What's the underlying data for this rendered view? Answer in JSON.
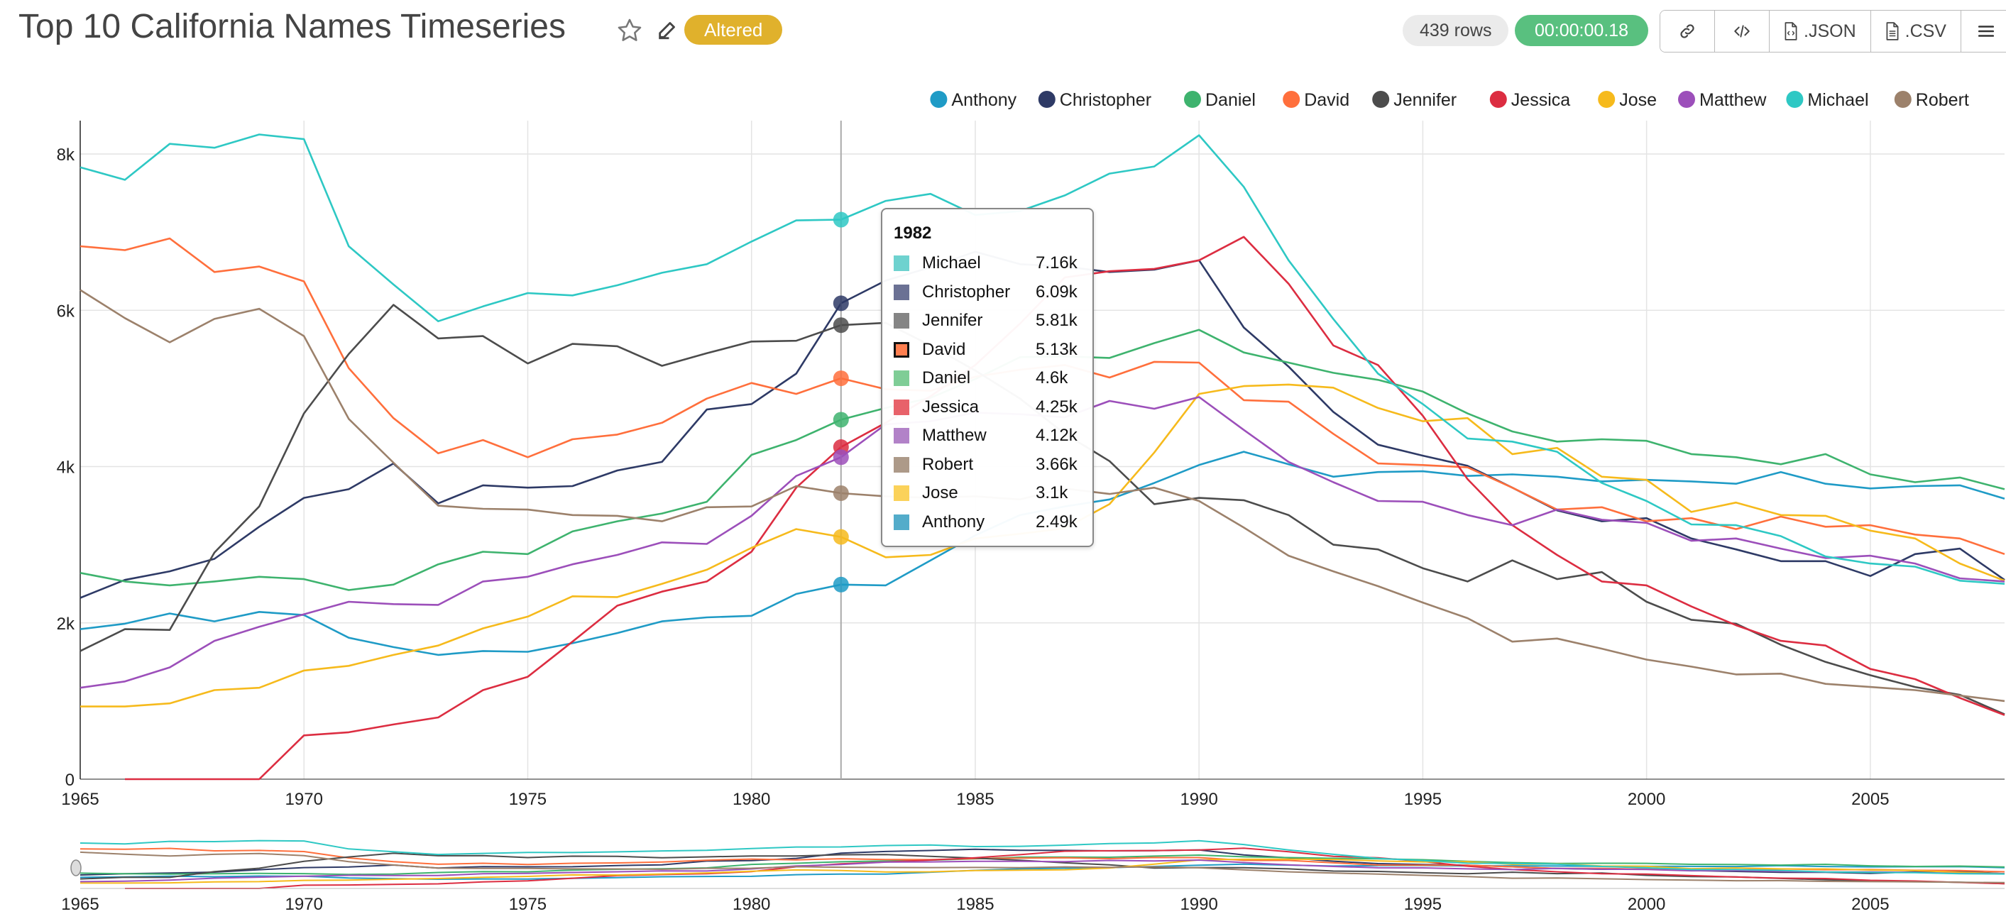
{
  "header": {
    "title": "Top 10 California Names Timeseries",
    "altered_badge": "Altered",
    "rows_badge": "439 rows",
    "time_badge": "00:00:00.18",
    "json_label": ".JSON",
    "csv_label": ".CSV",
    "icons": [
      "star-icon",
      "edit-icon",
      "link-icon",
      "code-icon",
      "json-file-icon",
      "csv-file-icon",
      "menu-icon"
    ]
  },
  "tooltip": {
    "title": "1982",
    "rows": [
      {
        "name": "Michael",
        "value": "7.16k",
        "color": "#6ed2cf"
      },
      {
        "name": "Christopher",
        "value": "6.09k",
        "color": "#6b7194"
      },
      {
        "name": "Jennifer",
        "value": "5.81k",
        "color": "#858585"
      },
      {
        "name": "David",
        "value": "5.13k",
        "color": "#ff7f50",
        "highlight": true
      },
      {
        "name": "Daniel",
        "value": "4.6k",
        "color": "#7fcd96"
      },
      {
        "name": "Jessica",
        "value": "4.25k",
        "color": "#e8626a"
      },
      {
        "name": "Matthew",
        "value": "4.12k",
        "color": "#b282c8"
      },
      {
        "name": "Robert",
        "value": "3.66k",
        "color": "#ad9a89"
      },
      {
        "name": "Jose",
        "value": "3.1k",
        "color": "#fbd25a"
      },
      {
        "name": "Anthony",
        "value": "2.49k",
        "color": "#53acca"
      }
    ]
  },
  "chart_data": {
    "type": "line",
    "title": "",
    "xlabel": "",
    "ylabel": "",
    "xlim": [
      1965,
      2008
    ],
    "ylim": [
      0,
      8200
    ],
    "x_ticks": [
      "1965",
      "1970",
      "1975",
      "1980",
      "1985",
      "1990",
      "1995",
      "2000",
      "2005"
    ],
    "y_ticks": [
      "0",
      "2k",
      "4k",
      "6k",
      "8k"
    ],
    "grid": true,
    "legend_position": "top-right",
    "hover_year": 1982,
    "x": [
      1965,
      1966,
      1967,
      1968,
      1969,
      1970,
      1971,
      1972,
      1973,
      1974,
      1975,
      1976,
      1977,
      1978,
      1979,
      1980,
      1981,
      1982,
      1983,
      1984,
      1985,
      1986,
      1987,
      1988,
      1989,
      1990,
      1991,
      1992,
      1993,
      1994,
      1995,
      1996,
      1997,
      1998,
      1999,
      2000,
      2001,
      2002,
      2003,
      2004,
      2005,
      2006,
      2007,
      2008
    ],
    "series": [
      {
        "name": "Anthony",
        "color": "#1f9bc6",
        "values": [
          1920,
          1990,
          2120,
          2020,
          2140,
          2100,
          1810,
          1690,
          1590,
          1640,
          1630,
          1740,
          1870,
          2020,
          2070,
          2090,
          2370,
          2490,
          2480,
          2800,
          3120,
          3380,
          3490,
          3580,
          3790,
          4020,
          4190,
          4030,
          3870,
          3930,
          3940,
          3880,
          3900,
          3870,
          3810,
          3830,
          3810,
          3780,
          3930,
          3780,
          3720,
          3750,
          3760,
          3590
        ]
      },
      {
        "name": "Christopher",
        "color": "#2e3a66",
        "values": [
          2320,
          2550,
          2660,
          2820,
          3230,
          3600,
          3710,
          4040,
          3530,
          3760,
          3730,
          3750,
          3950,
          4060,
          4730,
          4800,
          5190,
          6090,
          6380,
          6550,
          6750,
          6590,
          6560,
          6490,
          6520,
          6640,
          5780,
          5280,
          4700,
          4280,
          4140,
          4010,
          3730,
          3440,
          3300,
          3340,
          3080,
          2940,
          2790,
          2790,
          2600,
          2880,
          2950,
          2550
        ]
      },
      {
        "name": "Daniel",
        "color": "#3eb36e",
        "values": [
          2640,
          2530,
          2480,
          2530,
          2590,
          2560,
          2420,
          2490,
          2750,
          2910,
          2880,
          3170,
          3300,
          3400,
          3550,
          4150,
          4340,
          4600,
          4750,
          4880,
          5120,
          5400,
          5410,
          5390,
          5580,
          5750,
          5460,
          5330,
          5200,
          5110,
          4960,
          4680,
          4450,
          4320,
          4350,
          4330,
          4160,
          4120,
          4030,
          4160,
          3900,
          3800,
          3860,
          3710
        ]
      },
      {
        "name": "David",
        "color": "#ff6f3c",
        "values": [
          6820,
          6770,
          6920,
          6490,
          6560,
          6370,
          5260,
          4620,
          4170,
          4340,
          4120,
          4350,
          4410,
          4560,
          4870,
          5070,
          4930,
          5130,
          4990,
          4970,
          5150,
          5240,
          5300,
          5140,
          5340,
          5330,
          4850,
          4830,
          4420,
          4040,
          4020,
          3990,
          3730,
          3450,
          3480,
          3300,
          3340,
          3200,
          3360,
          3230,
          3250,
          3130,
          3080,
          2880
        ]
      },
      {
        "name": "Jennifer",
        "color": "#4c4c4c",
        "values": [
          1640,
          1920,
          1910,
          2900,
          3490,
          4680,
          5440,
          6070,
          5640,
          5670,
          5320,
          5570,
          5540,
          5290,
          5450,
          5600,
          5610,
          5810,
          5840,
          5550,
          5230,
          4870,
          4420,
          4070,
          3520,
          3600,
          3570,
          3380,
          3000,
          2940,
          2700,
          2530,
          2800,
          2560,
          2650,
          2270,
          2040,
          1990,
          1720,
          1500,
          1330,
          1180,
          1080,
          830
        ]
      },
      {
        "name": "Jessica",
        "color": "#dc2d41",
        "values": [
          null,
          0,
          0,
          0,
          0,
          560,
          600,
          700,
          790,
          1140,
          1310,
          1760,
          2220,
          2400,
          2530,
          2910,
          3730,
          4250,
          4560,
          4900,
          5300,
          5830,
          6420,
          6500,
          6530,
          6640,
          6940,
          6340,
          5550,
          5300,
          4650,
          3840,
          3250,
          2870,
          2530,
          2480,
          2210,
          1970,
          1770,
          1710,
          1410,
          1280,
          1040,
          820
        ]
      },
      {
        "name": "Jose",
        "color": "#f6ba1c",
        "values": [
          930,
          930,
          970,
          1140,
          1170,
          1390,
          1450,
          1590,
          1710,
          1930,
          2080,
          2340,
          2330,
          2500,
          2680,
          2960,
          3200,
          3100,
          2840,
          2870,
          3080,
          3140,
          3210,
          3520,
          4180,
          4930,
          5030,
          5050,
          5010,
          4750,
          4580,
          4620,
          4160,
          4240,
          3870,
          3830,
          3420,
          3540,
          3380,
          3370,
          3180,
          3080,
          2760,
          2540
        ]
      },
      {
        "name": "Matthew",
        "color": "#9c4fba",
        "values": [
          1170,
          1250,
          1430,
          1770,
          1950,
          2110,
          2270,
          2240,
          2230,
          2530,
          2590,
          2750,
          2870,
          3030,
          3010,
          3370,
          3880,
          4120,
          4540,
          4580,
          4690,
          4670,
          4630,
          4840,
          4740,
          4890,
          4470,
          4060,
          3800,
          3560,
          3550,
          3380,
          3250,
          3450,
          3320,
          3280,
          3050,
          3080,
          2950,
          2830,
          2860,
          2760,
          2570,
          2530
        ]
      },
      {
        "name": "Michael",
        "color": "#2ec8c4",
        "values": [
          7830,
          7670,
          8130,
          8080,
          8250,
          8190,
          6820,
          6330,
          5860,
          6050,
          6220,
          6190,
          6320,
          6480,
          6590,
          6880,
          7150,
          7160,
          7400,
          7490,
          7220,
          7270,
          7470,
          7750,
          7840,
          8240,
          7580,
          6640,
          5890,
          5190,
          4800,
          4360,
          4320,
          4190,
          3790,
          3560,
          3260,
          3250,
          3110,
          2850,
          2760,
          2720,
          2540,
          2500
        ]
      },
      {
        "name": "Robert",
        "color": "#9c816b",
        "values": [
          6260,
          5900,
          5590,
          5890,
          6020,
          5670,
          4610,
          4050,
          3500,
          3460,
          3450,
          3380,
          3370,
          3300,
          3480,
          3490,
          3750,
          3660,
          3620,
          3600,
          3620,
          3580,
          3720,
          3650,
          3730,
          3560,
          3220,
          2860,
          2660,
          2470,
          2260,
          2060,
          1760,
          1800,
          1670,
          1530,
          1440,
          1340,
          1350,
          1220,
          1180,
          1140,
          1070,
          1000
        ]
      }
    ]
  }
}
